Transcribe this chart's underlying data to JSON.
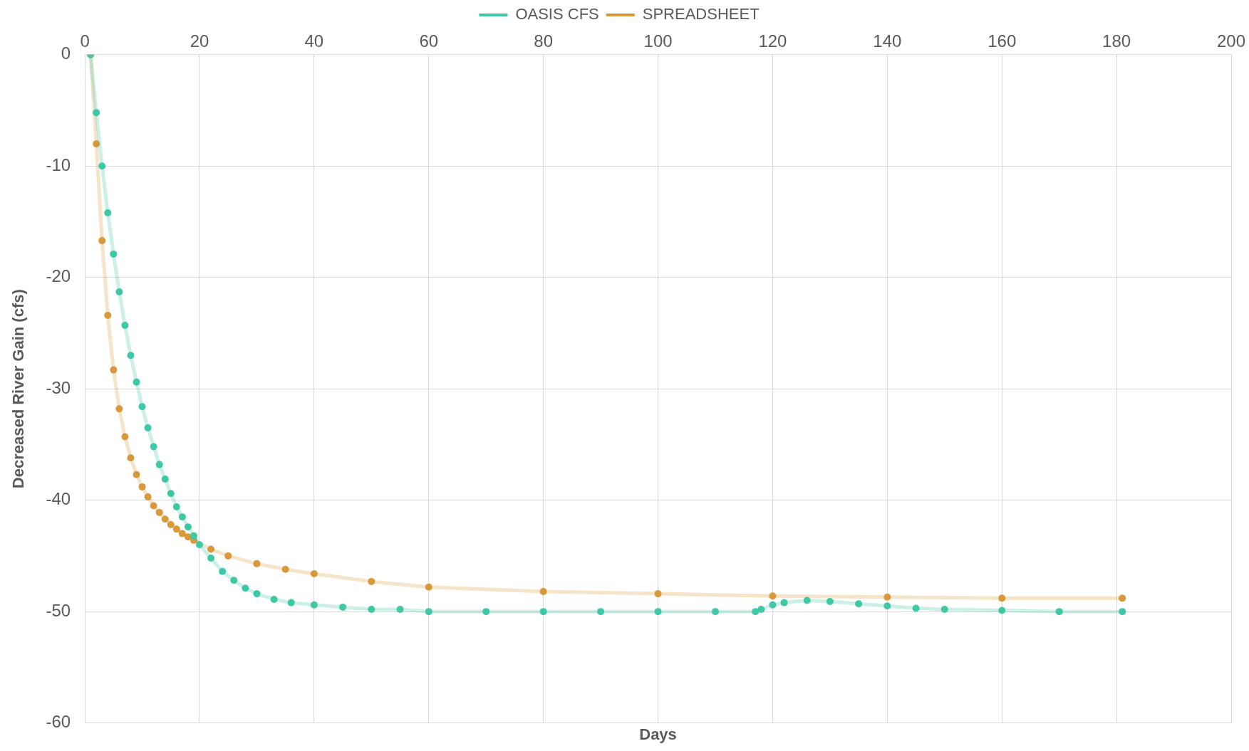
{
  "chart_data": {
    "type": "line",
    "xlabel": "Days",
    "ylabel": "Decreased River Gain (cfs)",
    "xlim": [
      0,
      200
    ],
    "xticks": [
      0,
      20,
      40,
      60,
      80,
      100,
      120,
      140,
      160,
      180,
      200
    ],
    "ylim": [
      -60,
      0
    ],
    "yticks": [
      -60,
      -50,
      -40,
      -30,
      -20,
      -10,
      0
    ],
    "grid": true,
    "legend": "top",
    "marker": "circle",
    "line_style": "solid",
    "series": [
      {
        "name": "OASIS CFS",
        "color": "#3fc8a5",
        "x": [
          1,
          2,
          3,
          4,
          5,
          6,
          7,
          8,
          9,
          10,
          11,
          12,
          13,
          14,
          15,
          16,
          17,
          18,
          19,
          20,
          22,
          24,
          26,
          28,
          30,
          33,
          36,
          40,
          45,
          50,
          55,
          60,
          70,
          80,
          90,
          100,
          110,
          117,
          118,
          120,
          122,
          126,
          130,
          135,
          140,
          145,
          150,
          160,
          170,
          181
        ],
        "values": [
          0,
          -5.2,
          -10,
          -14.2,
          -17.9,
          -21.3,
          -24.3,
          -27,
          -29.4,
          -31.6,
          -33.5,
          -35.2,
          -36.8,
          -38.1,
          -39.4,
          -40.6,
          -41.5,
          -42.4,
          -43.2,
          -44,
          -45.2,
          -46.4,
          -47.2,
          -47.9,
          -48.4,
          -48.9,
          -49.2,
          -49.4,
          -49.6,
          -49.8,
          -49.8,
          -50,
          -50,
          -50,
          -50,
          -50,
          -50,
          -50,
          -49.8,
          -49.4,
          -49.2,
          -49,
          -49.1,
          -49.3,
          -49.5,
          -49.7,
          -49.8,
          -49.9,
          -50,
          -50
        ]
      },
      {
        "name": "SPREADSHEET",
        "color": "#d9993a",
        "x": [
          1,
          2,
          3,
          4,
          5,
          6,
          7,
          8,
          9,
          10,
          11,
          12,
          13,
          14,
          15,
          16,
          17,
          18,
          19,
          22,
          25,
          30,
          35,
          40,
          50,
          60,
          80,
          100,
          120,
          140,
          160,
          181
        ],
        "values": [
          0,
          -8,
          -16.7,
          -23.4,
          -28.3,
          -31.8,
          -34.3,
          -36.2,
          -37.7,
          -38.8,
          -39.7,
          -40.5,
          -41.1,
          -41.7,
          -42.2,
          -42.6,
          -43,
          -43.3,
          -43.6,
          -44.4,
          -45,
          -45.7,
          -46.2,
          -46.6,
          -47.3,
          -47.8,
          -48.2,
          -48.4,
          -48.6,
          -48.7,
          -48.8,
          -48.8
        ]
      }
    ]
  }
}
